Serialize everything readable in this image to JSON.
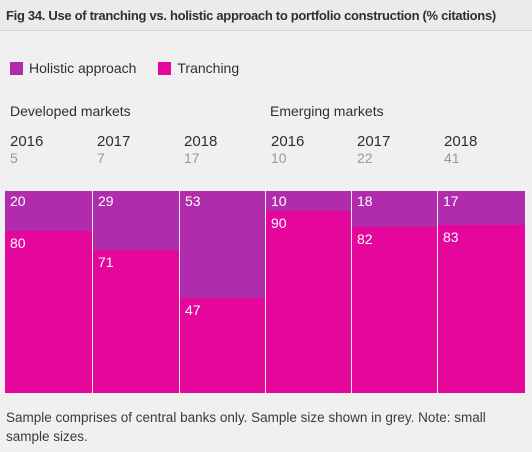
{
  "title": "Fig 34. Use of tranching vs. holistic approach to portfolio construction (% citations)",
  "legend": [
    {
      "label": "Holistic approach",
      "color": "#b12cad"
    },
    {
      "label": "Tranching",
      "color": "#e5069b"
    }
  ],
  "groups": [
    {
      "label": "Developed markets"
    },
    {
      "label": "Emerging markets"
    }
  ],
  "columns": [
    {
      "year": "2016",
      "n": "5"
    },
    {
      "year": "2017",
      "n": "7"
    },
    {
      "year": "2018",
      "n": "17"
    },
    {
      "year": "2016",
      "n": "10"
    },
    {
      "year": "2017",
      "n": "22"
    },
    {
      "year": "2018",
      "n": "41"
    }
  ],
  "chart_data": {
    "type": "bar",
    "stacked": true,
    "normalized": true,
    "categories": [
      "2016",
      "2017",
      "2018",
      "2016",
      "2017",
      "2018"
    ],
    "category_groups": [
      "Developed markets",
      "Developed markets",
      "Developed markets",
      "Emerging markets",
      "Emerging markets",
      "Emerging markets"
    ],
    "sample_sizes": [
      5,
      7,
      17,
      10,
      22,
      41
    ],
    "series": [
      {
        "name": "Holistic approach",
        "values": [
          20,
          29,
          53,
          10,
          18,
          17
        ],
        "color": "#b12cad"
      },
      {
        "name": "Tranching",
        "values": [
          80,
          71,
          47,
          90,
          82,
          83
        ],
        "color": "#e5069b"
      }
    ],
    "ylim": [
      0,
      100
    ],
    "legend_position": "top-left",
    "grid": false
  },
  "note": "Sample comprises of central banks only. Sample size shown in grey. Note: small sample sizes.",
  "colors": {
    "background": "#f0f0f0",
    "holistic": "#b12cad",
    "tranching": "#e5069b",
    "muted_text": "#999999"
  }
}
